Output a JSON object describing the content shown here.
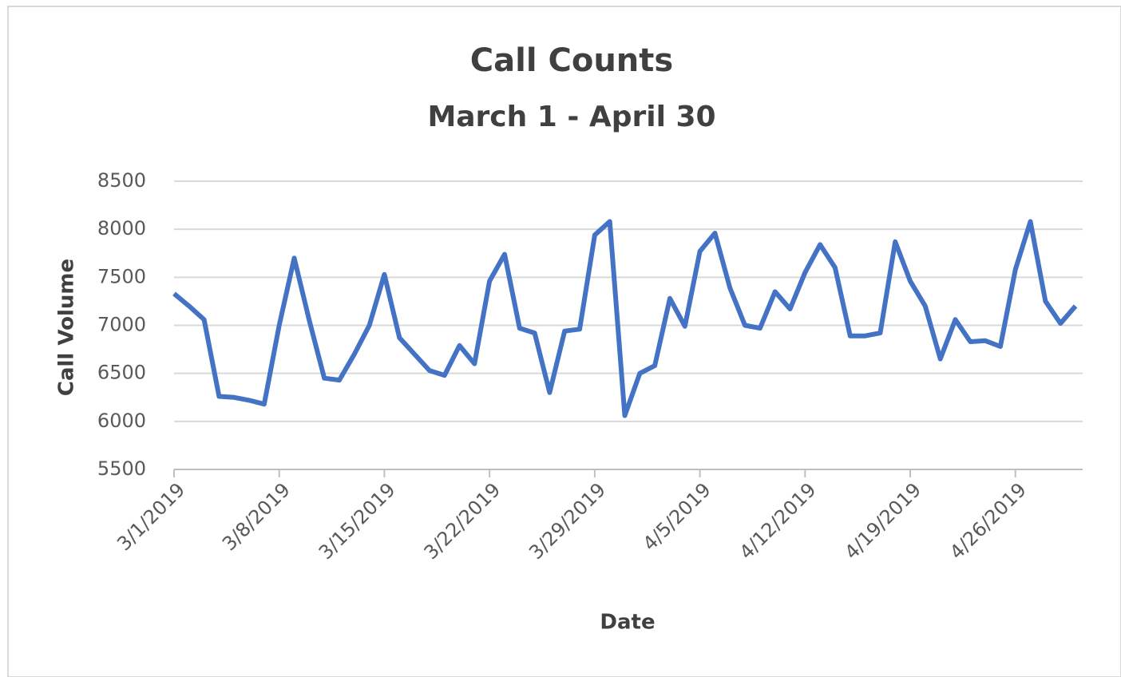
{
  "chart_data": {
    "type": "line",
    "title": "Call Counts",
    "subtitle": "March 1 - April 30",
    "x_label": "Date",
    "y_label": "Call Volume",
    "categories": [
      "3/1/2019",
      null,
      null,
      null,
      null,
      null,
      null,
      "3/8/2019",
      null,
      null,
      null,
      null,
      null,
      null,
      "3/15/2019",
      null,
      null,
      null,
      null,
      null,
      null,
      "3/22/2019",
      null,
      null,
      null,
      null,
      null,
      null,
      "3/29/2019",
      null,
      null,
      null,
      null,
      null,
      null,
      "4/5/2019",
      null,
      null,
      null,
      null,
      null,
      null,
      "4/12/2019",
      null,
      null,
      null,
      null,
      null,
      null,
      "4/19/2019",
      null,
      null,
      null,
      null,
      null,
      null,
      "4/26/2019",
      null,
      null,
      null,
      null
    ],
    "series": [
      {
        "name": "Call Volume",
        "color": "#4472c4",
        "values": [
          7330,
          7200,
          7060,
          6260,
          6250,
          6220,
          6180,
          7000,
          7700,
          7050,
          6450,
          6430,
          6700,
          7000,
          7530,
          6870,
          6700,
          6530,
          6480,
          6790,
          6600,
          7460,
          7740,
          6970,
          6920,
          6300,
          6940,
          6960,
          7940,
          8080,
          6060,
          6500,
          6580,
          7280,
          6990,
          7770,
          7960,
          7390,
          7000,
          6970,
          7350,
          7170,
          7550,
          7840,
          7600,
          6890,
          6890,
          6920,
          7870,
          7460,
          7200,
          6650,
          7060,
          6830,
          6840,
          6780,
          7580,
          8080,
          7250,
          7020,
          7200
        ]
      }
    ],
    "ylim": [
      5500,
      8500
    ],
    "yticks": [
      5500,
      6000,
      6500,
      7000,
      7500,
      8000,
      8500
    ],
    "grid": true
  }
}
